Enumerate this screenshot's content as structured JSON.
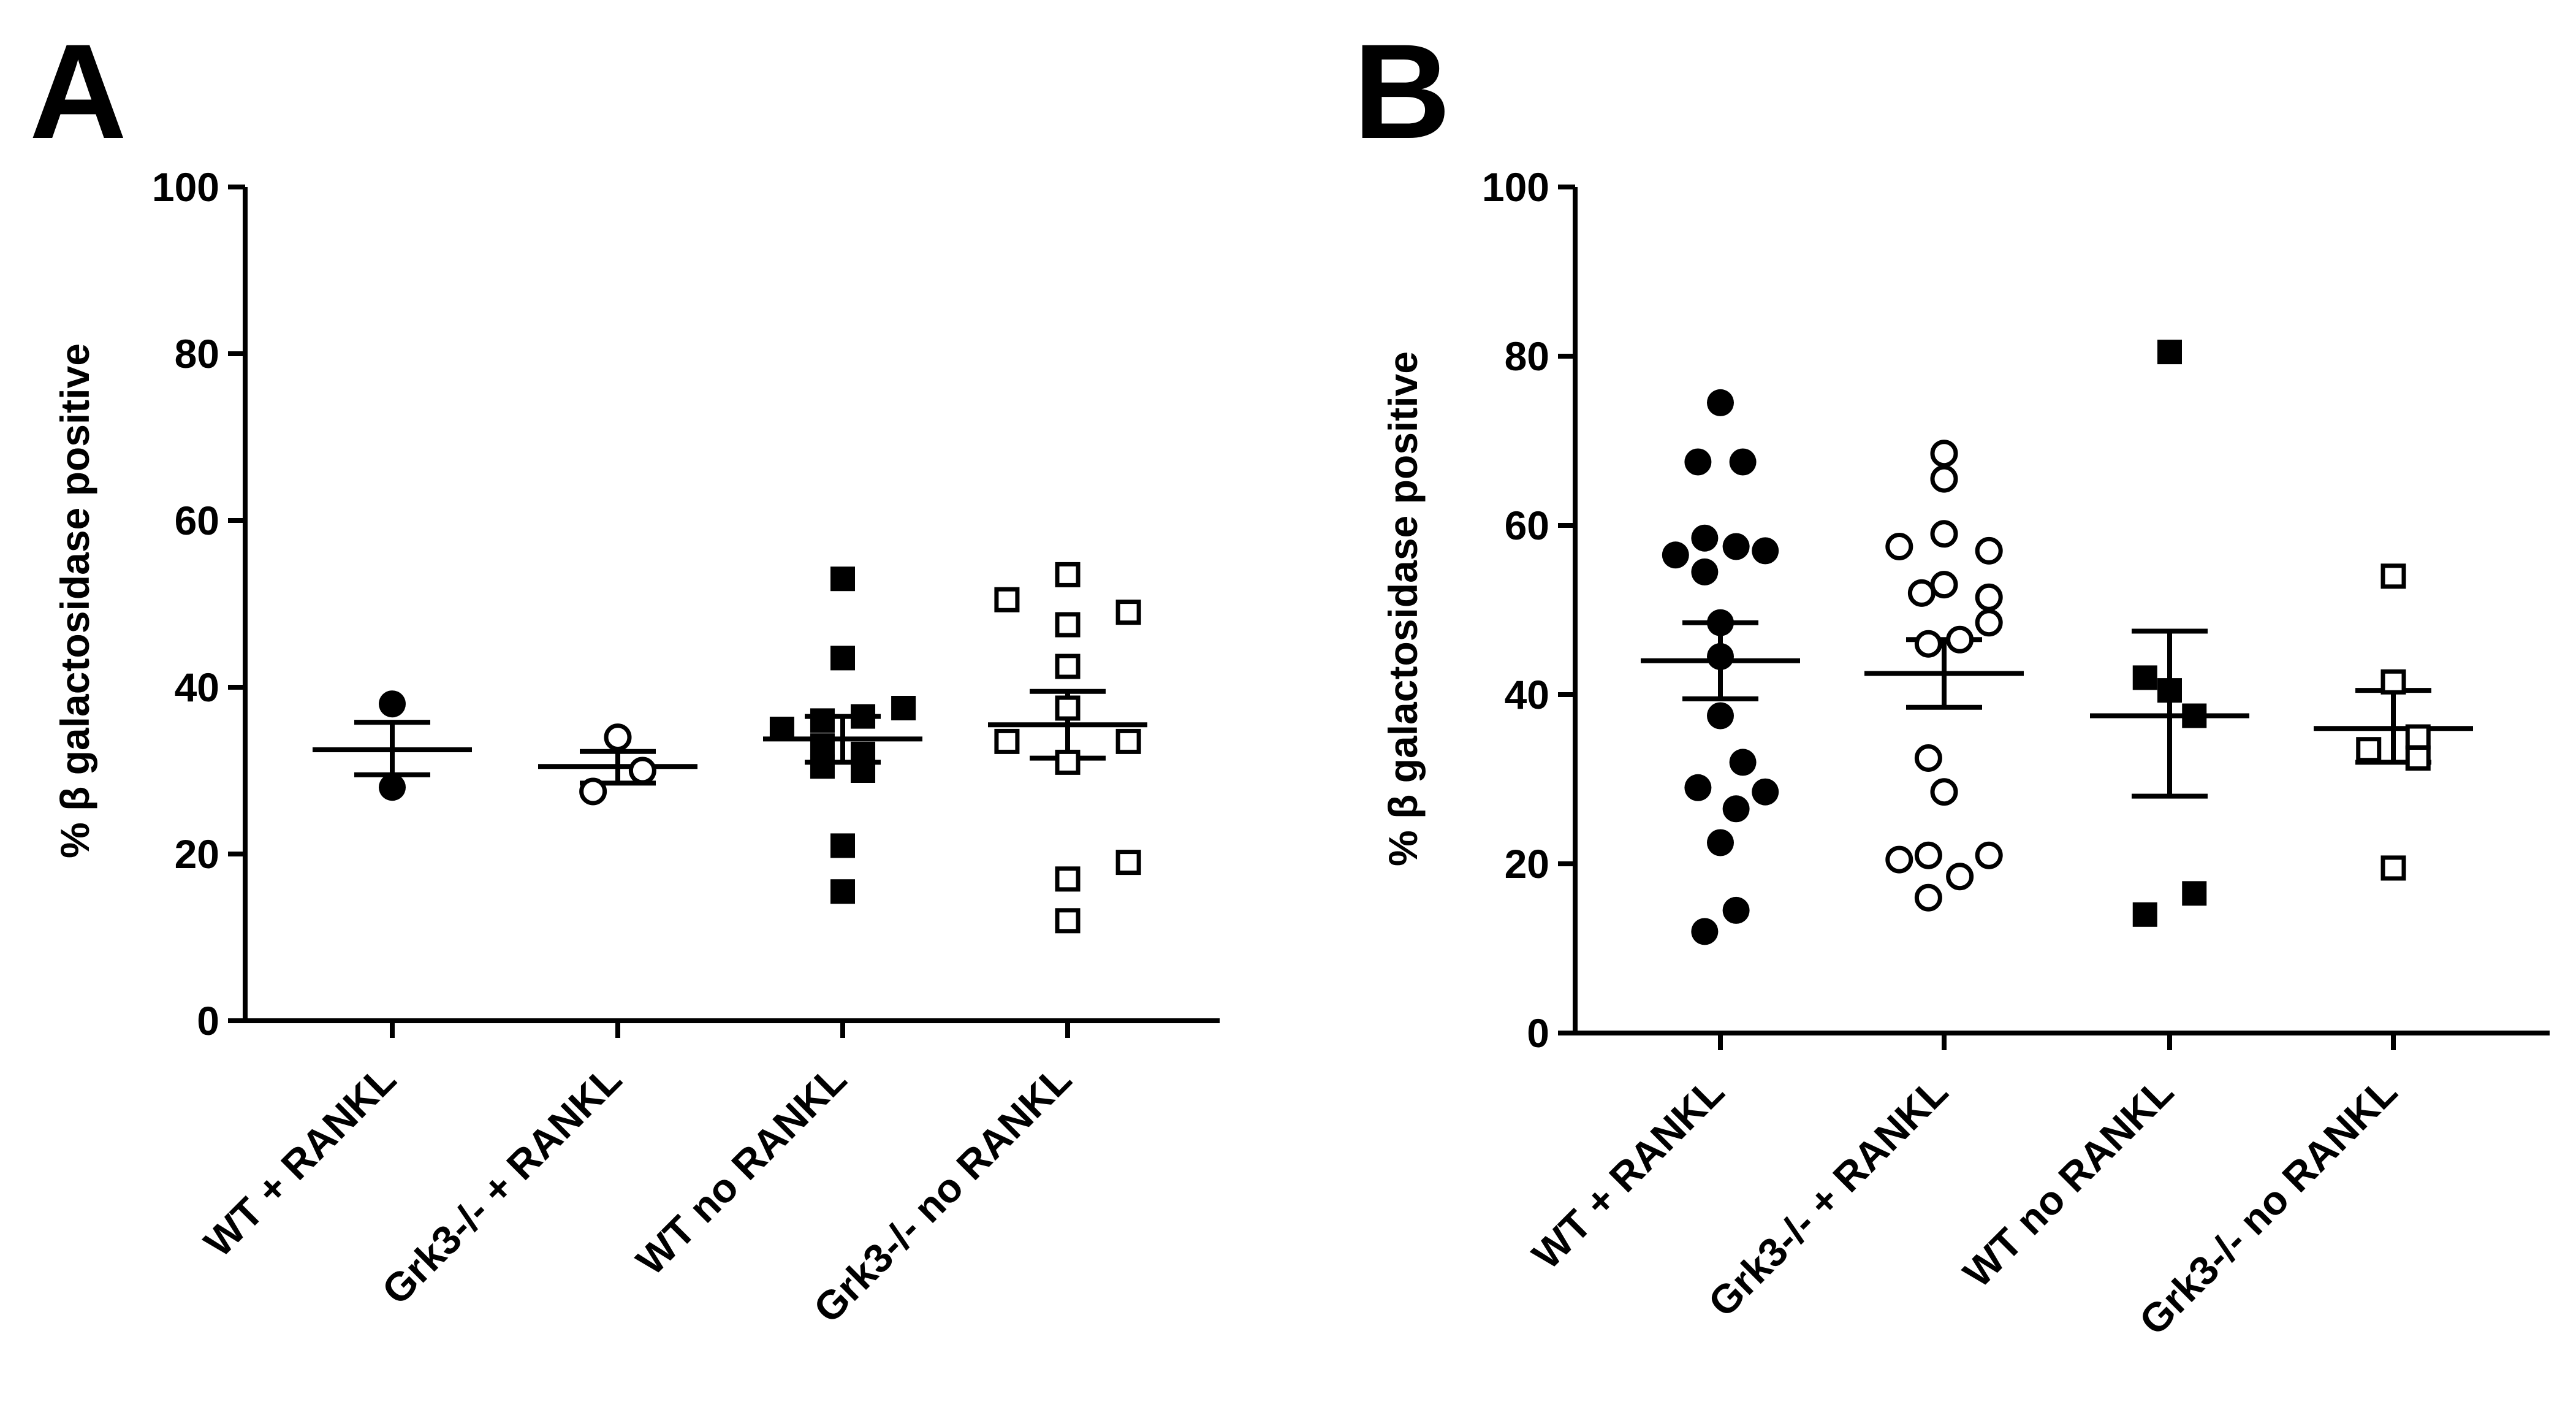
{
  "figure": {
    "panels": [
      "A",
      "B"
    ]
  },
  "chart_data": [
    {
      "panel": "A",
      "type": "scatter",
      "title": "",
      "xlabel": "",
      "ylabel": "% β galactosidase positive",
      "ylim": [
        0,
        100
      ],
      "yticks": [
        0,
        20,
        40,
        60,
        80,
        100
      ],
      "categories": [
        "WT + RANKL",
        "Grk3-/- + RANKL",
        "WT no RANKL",
        "Grk3-/- no RANKL"
      ],
      "series": [
        {
          "name": "WT + RANKL",
          "marker": "circle",
          "fill": "filled",
          "points": [
            [
              0.0,
              38.0
            ],
            [
              0.0,
              28.0
            ]
          ],
          "mean": 32.5,
          "sem": [
            29.5,
            35.8
          ]
        },
        {
          "name": "Grk3-/- + RANKL",
          "marker": "circle",
          "fill": "open",
          "points": [
            [
              0.0,
              34.0
            ],
            [
              -0.11,
              27.5
            ],
            [
              0.11,
              30.0
            ]
          ],
          "mean": 30.5,
          "sem": [
            28.5,
            32.3
          ]
        },
        {
          "name": "WT no RANKL",
          "marker": "square",
          "fill": "filled",
          "points": [
            [
              0.0,
              53.0
            ],
            [
              0.0,
              43.5
            ],
            [
              -0.27,
              35.0
            ],
            [
              -0.09,
              36.0
            ],
            [
              0.09,
              36.5
            ],
            [
              0.27,
              37.5
            ],
            [
              -0.09,
              33.0
            ],
            [
              0.09,
              32.0
            ],
            [
              -0.09,
              30.5
            ],
            [
              0.09,
              30.0
            ],
            [
              0.0,
              21.0
            ],
            [
              0.0,
              15.5
            ]
          ],
          "mean": 33.8,
          "sem": [
            31.0,
            36.5
          ]
        },
        {
          "name": "Grk3-/- no RANKL",
          "marker": "square",
          "fill": "open",
          "points": [
            [
              -0.27,
              50.5
            ],
            [
              0.0,
              53.5
            ],
            [
              0.0,
              47.5
            ],
            [
              0.27,
              49.0
            ],
            [
              0.0,
              42.5
            ],
            [
              0.0,
              37.5
            ],
            [
              -0.27,
              33.5
            ],
            [
              0.27,
              33.5
            ],
            [
              0.0,
              31.0
            ],
            [
              0.0,
              17.0
            ],
            [
              0.27,
              19.0
            ],
            [
              0.0,
              12.0
            ]
          ],
          "mean": 35.5,
          "sem": [
            31.5,
            39.5
          ]
        }
      ]
    },
    {
      "panel": "B",
      "type": "scatter",
      "title": "",
      "xlabel": "",
      "ylabel": "% β galactosidase positive",
      "ylim": [
        0,
        100
      ],
      "yticks": [
        0,
        20,
        40,
        60,
        80,
        100
      ],
      "categories": [
        "WT + RANKL",
        "Grk3-/- + RANKL",
        "WT no RANKL",
        "Grk3-/- no RANKL"
      ],
      "series": [
        {
          "name": "WT + RANKL",
          "marker": "circle",
          "fill": "filled",
          "points": [
            [
              0.0,
              74.5
            ],
            [
              -0.1,
              67.5
            ],
            [
              0.1,
              67.5
            ],
            [
              -0.2,
              56.5
            ],
            [
              -0.07,
              58.5
            ],
            [
              0.07,
              57.5
            ],
            [
              0.2,
              57.0
            ],
            [
              -0.07,
              54.5
            ],
            [
              0.0,
              48.5
            ],
            [
              0.0,
              44.5
            ],
            [
              0.0,
              37.5
            ],
            [
              -0.1,
              29.0
            ],
            [
              0.1,
              32.0
            ],
            [
              0.2,
              28.5
            ],
            [
              0.07,
              26.5
            ],
            [
              0.0,
              22.5
            ],
            [
              0.07,
              14.5
            ],
            [
              -0.07,
              12.0
            ]
          ],
          "mean": 44.0,
          "sem": [
            39.5,
            48.5
          ]
        },
        {
          "name": "Grk3-/- + RANKL",
          "marker": "circle",
          "fill": "open",
          "points": [
            [
              0.0,
              68.5
            ],
            [
              0.0,
              65.5
            ],
            [
              -0.2,
              57.5
            ],
            [
              0.0,
              59.0
            ],
            [
              0.2,
              57.0
            ],
            [
              -0.1,
              52.0
            ],
            [
              0.0,
              53.0
            ],
            [
              0.2,
              51.5
            ],
            [
              -0.07,
              46.0
            ],
            [
              0.07,
              46.5
            ],
            [
              0.2,
              48.5
            ],
            [
              -0.07,
              32.5
            ],
            [
              0.0,
              28.5
            ],
            [
              -0.2,
              20.5
            ],
            [
              -0.07,
              21.0
            ],
            [
              0.2,
              21.0
            ],
            [
              -0.07,
              16.0
            ],
            [
              0.07,
              18.5
            ]
          ],
          "mean": 42.5,
          "sem": [
            38.5,
            46.5
          ]
        },
        {
          "name": "WT no RANKL",
          "marker": "square",
          "fill": "filled",
          "points": [
            [
              0.0,
              80.5
            ],
            [
              -0.11,
              42.0
            ],
            [
              0.0,
              40.5
            ],
            [
              0.11,
              37.5
            ],
            [
              -0.11,
              14.0
            ],
            [
              0.11,
              16.5
            ]
          ],
          "mean": 37.5,
          "sem": [
            28.0,
            47.5
          ]
        },
        {
          "name": "Grk3-/- no RANKL",
          "marker": "square",
          "fill": "open",
          "points": [
            [
              0.0,
              54.0
            ],
            [
              0.0,
              41.5
            ],
            [
              -0.11,
              33.5
            ],
            [
              0.11,
              35.0
            ],
            [
              0.11,
              32.5
            ],
            [
              0.0,
              19.5
            ]
          ],
          "mean": 36.0,
          "sem": [
            32.0,
            40.5
          ]
        }
      ]
    }
  ]
}
